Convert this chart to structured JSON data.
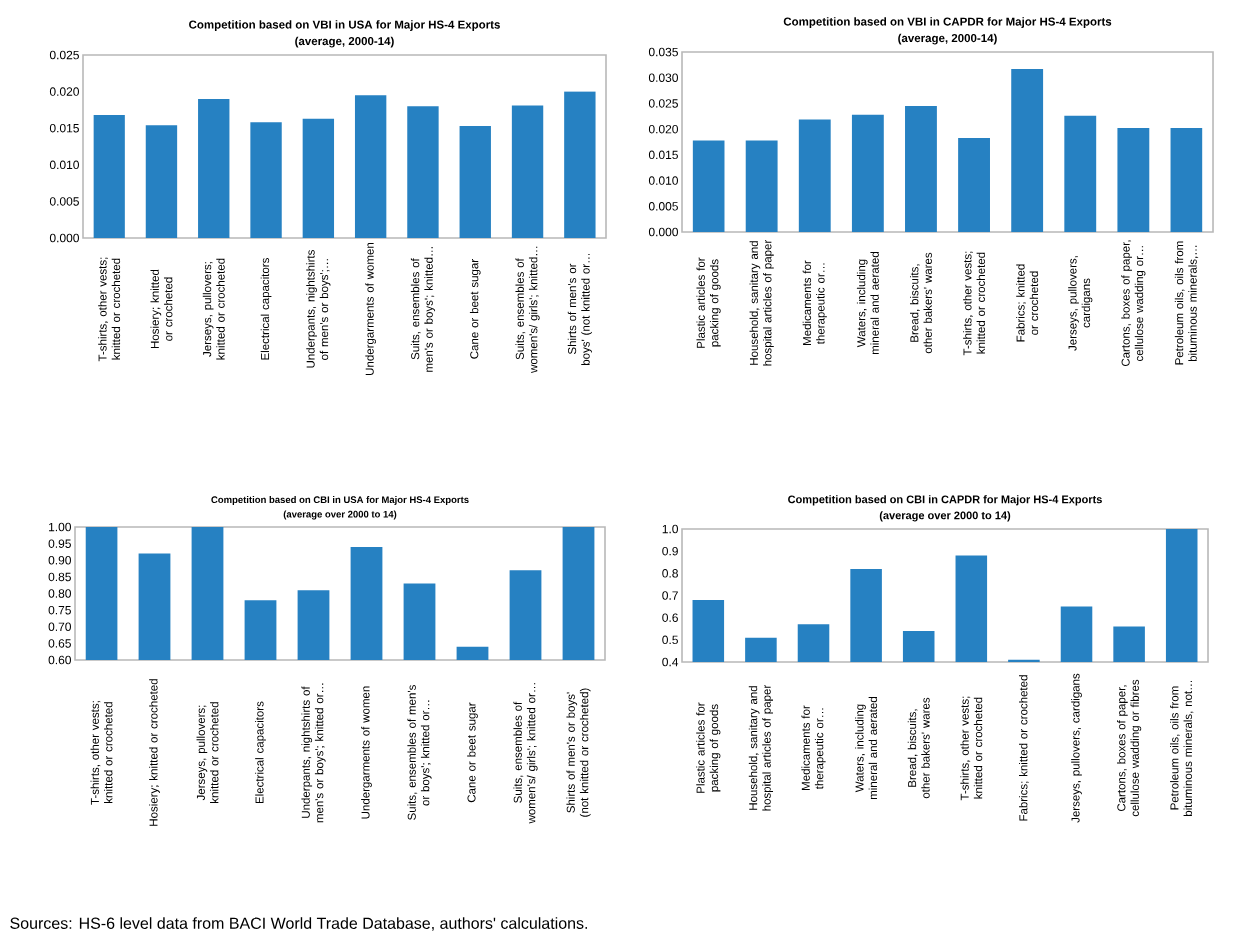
{
  "chart_data": [
    {
      "type": "bar",
      "title": "Competition based on VBI in USA for Major HS-4 Exports",
      "subtitle": "(average, 2000-14)",
      "categories": [
        "T-shirts, other vests; knitted or crocheted",
        "Hosiery; knitted or crocheted",
        "Jerseys, pullovers; knitted or crocheted",
        "Electrical capacitors",
        "Underpants, nightshirts of men's or boys';…",
        "Undergarments of women",
        "Suits, ensembles of men's or boys'; knitted…",
        "Cane or beet sugar",
        "Suits, ensembles of women's/ girls'; knitted…",
        "Shirts of men's or boys' (not knitted or…"
      ],
      "values": [
        0.0168,
        0.0154,
        0.019,
        0.0158,
        0.0163,
        0.0195,
        0.018,
        0.0153,
        0.0181,
        0.02
      ],
      "color": "#2681c2",
      "ylim": [
        0,
        0.025
      ],
      "yticks": [
        {
          "value": 0,
          "label": "0.000"
        },
        {
          "value": 0.005,
          "label": "0.005"
        },
        {
          "value": 0.01,
          "label": "0.010"
        },
        {
          "value": 0.015,
          "label": "0.015"
        },
        {
          "value": 0.02,
          "label": "0.020"
        },
        {
          "value": 0.025,
          "label": "0.025"
        }
      ]
    },
    {
      "type": "bar",
      "title": "Competition based on VBI in CAPDR for Major HS-4 Exports",
      "subtitle": "(average, 2000-14)",
      "categories": [
        "Plastic articles for packing of goods",
        "Household, sanitary and hospital articles of paper",
        "Medicaments for therapeutic or…",
        "Waters, including mineral and aerated",
        "Bread, biscuits, other bakers' wares",
        "T-shirts, other vests; knitted or crocheted",
        "Fabrics; knitted or crocheted",
        "Jerseys, pullovers, cardigans",
        "Cartons, boxes of paper, cellulose wadding or…",
        "Petroleum oils, oils from bituminous minerals,…"
      ],
      "values": [
        0.0178,
        0.0178,
        0.0219,
        0.0228,
        0.0245,
        0.0183,
        0.0317,
        0.0226,
        0.0202,
        0.0202
      ],
      "color": "#2681c2",
      "ylim": [
        0,
        0.035
      ],
      "yticks": [
        {
          "value": 0,
          "label": "0.000"
        },
        {
          "value": 0.005,
          "label": "0.005"
        },
        {
          "value": 0.01,
          "label": "0.010"
        },
        {
          "value": 0.015,
          "label": "0.015"
        },
        {
          "value": 0.02,
          "label": "0.020"
        },
        {
          "value": 0.025,
          "label": "0.025"
        },
        {
          "value": 0.03,
          "label": "0.030"
        },
        {
          "value": 0.035,
          "label": "0.035"
        }
      ]
    },
    {
      "type": "bar",
      "title": "Competition based on CBI in USA for Major HS-4 Exports",
      "subtitle": "(average over 2000 to 14)",
      "categories": [
        "T-shirts, other vests; knitted or crocheted",
        "Hosiery; knitted or crocheted",
        "Jerseys, pullovers; knitted or crocheted",
        "Electrical capacitors",
        "Underpants, nightshirts of men's or boys'; knitted or…",
        "Undergarments of women",
        "Suits, ensembles of men's or boys'; knitted or…",
        "Cane or beet sugar",
        "Suits, ensembles of women's/ girls'; knitted or…",
        "Shirts of men's or boys' (not knitted or crocheted)"
      ],
      "values": [
        1.0,
        0.92,
        1.0,
        0.78,
        0.81,
        0.94,
        0.83,
        0.64,
        0.87,
        1.0
      ],
      "color": "#2681c2",
      "ylim": [
        0.6,
        1.0
      ],
      "yticks": [
        {
          "value": 0.6,
          "label": "0.60"
        },
        {
          "value": 0.65,
          "label": "0.65"
        },
        {
          "value": 0.7,
          "label": "0.70"
        },
        {
          "value": 0.75,
          "label": "0.75"
        },
        {
          "value": 0.8,
          "label": "0.80"
        },
        {
          "value": 0.85,
          "label": "0.85"
        },
        {
          "value": 0.9,
          "label": "0.90"
        },
        {
          "value": 0.95,
          "label": "0.95"
        },
        {
          "value": 1.0,
          "label": "1.00"
        }
      ]
    },
    {
      "type": "bar",
      "title": "Competition based on CBI in CAPDR for Major HS-4 Exports",
      "subtitle": "(average over 2000  to 14)",
      "categories": [
        "Plastic articles for packing of goods",
        "Household, sanitary and hospital articles of paper",
        "Medicaments for therapeutic or…",
        "Waters, including mineral and aerated",
        "Bread, biscuits, other bakers' wares",
        "T-shirts, other vests; knitted or crocheted",
        "Fabrics; knitted or crocheted",
        "Jerseys, pullovers, cardigans",
        "Cartons, boxes of paper, cellulose wadding or fibres",
        "Petroleum oils, oils from bituminous minerals, not…"
      ],
      "values": [
        0.68,
        0.51,
        0.57,
        0.82,
        0.54,
        0.88,
        0.41,
        0.65,
        0.56,
        1.0
      ],
      "color": "#2681c2",
      "ylim": [
        0.4,
        1.0
      ],
      "yticks": [
        {
          "value": 0.4,
          "label": "0.4"
        },
        {
          "value": 0.5,
          "label": "0.5"
        },
        {
          "value": 0.6,
          "label": "0.6"
        },
        {
          "value": 0.7,
          "label": "0.7"
        },
        {
          "value": 0.8,
          "label": "0.8"
        },
        {
          "value": 0.9,
          "label": "0.9"
        },
        {
          "value": 1.0,
          "label": "1.0"
        }
      ],
      "annotations": [
        "Sources: HS-6 level data from BACI World Trade Database, authors' calculations."
      ]
    }
  ]
}
